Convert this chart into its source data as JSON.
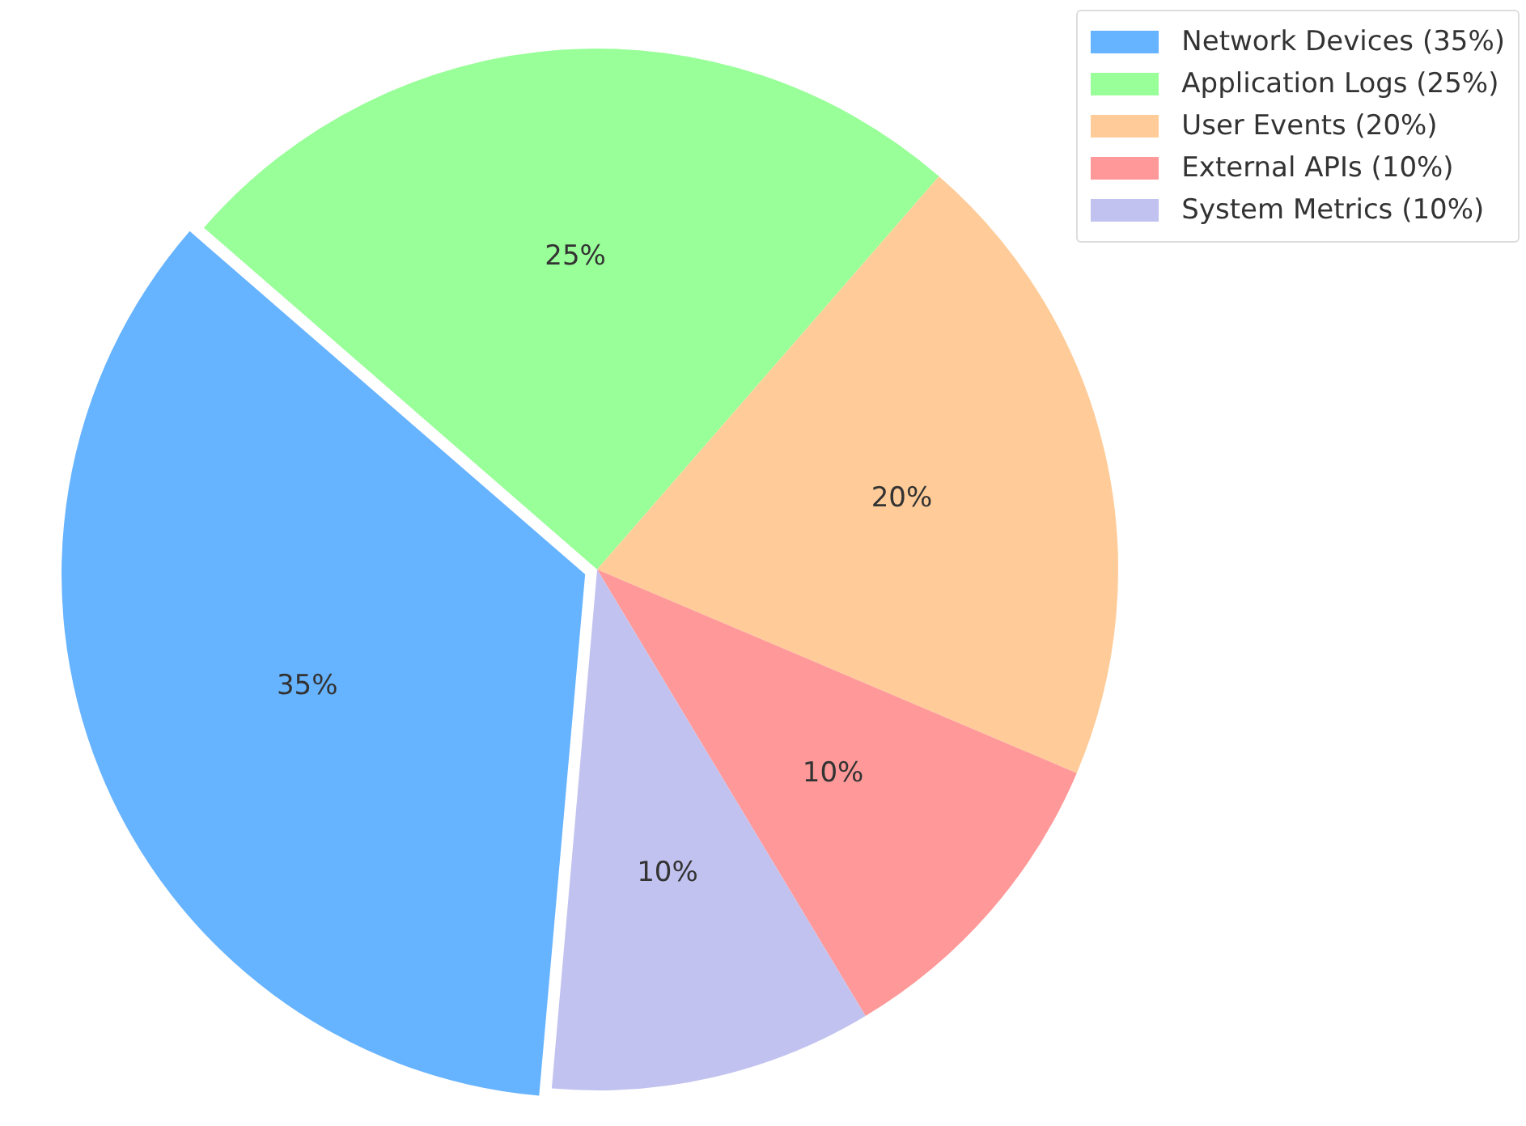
{
  "chart_data": {
    "type": "pie",
    "categories": [
      "Network Devices (35%)",
      "Application Logs (25%)",
      "User Events (20%)",
      "External APIs (10%)",
      "System Metrics (10%)"
    ],
    "values": [
      35,
      25,
      20,
      10,
      10
    ],
    "colors": [
      "#66b3ff",
      "#99ff99",
      "#ffcc99",
      "#ff9999",
      "#c2c2f0"
    ],
    "value_labels": [
      "35%",
      "25%",
      "20%",
      "10%",
      "10%"
    ],
    "legend": "top right"
  }
}
